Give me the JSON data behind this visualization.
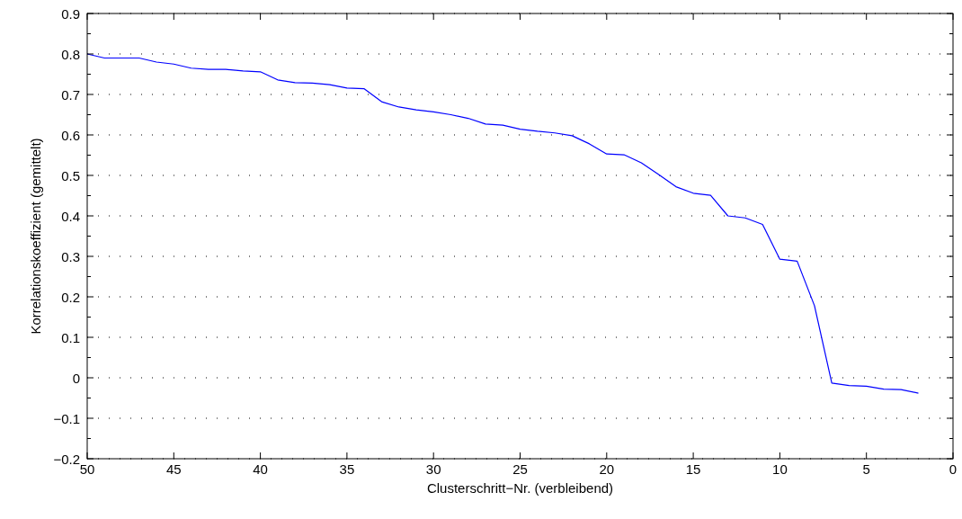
{
  "chart_data": {
    "type": "line",
    "xlabel": "Clusterschritt−Nr. (verbleibend)",
    "ylabel": "Korrelationskoeffizient (gemittelt)",
    "x": [
      50,
      49,
      48,
      47,
      46,
      45,
      44,
      43,
      42,
      41,
      40,
      39,
      38,
      37,
      36,
      35,
      34,
      33,
      32,
      31,
      30,
      29,
      28,
      27,
      26,
      25,
      24,
      23,
      22,
      21,
      20,
      19,
      18,
      17,
      16,
      15,
      14,
      13,
      12,
      11,
      10,
      9,
      8,
      7,
      6,
      5,
      4,
      3,
      2
    ],
    "series": [
      {
        "color": "#0000ff",
        "values": [
          0.8,
          0.79,
          0.79,
          0.79,
          0.78,
          0.775,
          0.765,
          0.762,
          0.762,
          0.758,
          0.756,
          0.736,
          0.729,
          0.728,
          0.724,
          0.716,
          0.714,
          0.682,
          0.669,
          0.662,
          0.657,
          0.65,
          0.641,
          0.627,
          0.624,
          0.614,
          0.609,
          0.605,
          0.598,
          0.578,
          0.553,
          0.551,
          0.531,
          0.502,
          0.472,
          0.456,
          0.451,
          0.4,
          0.395,
          0.379,
          0.293,
          0.288,
          0.178,
          -0.013,
          -0.019,
          -0.021,
          -0.028,
          -0.029,
          -0.038
        ]
      }
    ],
    "xlim": [
      50,
      0
    ],
    "xticks": [
      50,
      45,
      40,
      35,
      30,
      25,
      20,
      15,
      10,
      5,
      0
    ],
    "ylim": [
      -0.2,
      0.9
    ],
    "yticks": [
      {
        "value": -0.2,
        "label": "−0.2"
      },
      {
        "value": -0.1,
        "label": "−0.1"
      },
      0,
      0.1,
      0.2,
      0.3,
      0.4,
      0.5,
      0.6,
      0.7,
      0.8,
      0.9
    ],
    "grid": "y",
    "marker": "none",
    "line_style": "solid"
  }
}
